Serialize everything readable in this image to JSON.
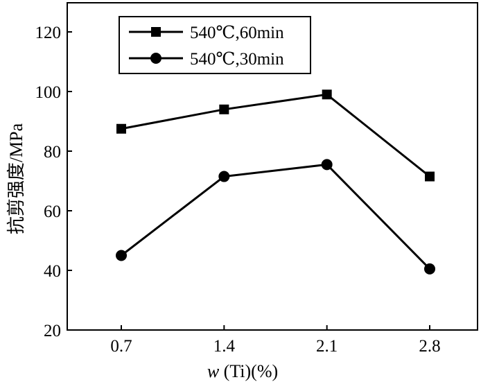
{
  "chart_data": {
    "type": "line",
    "title": "",
    "x": [
      0.7,
      1.4,
      2.1,
      2.8
    ],
    "x_tick_labels": [
      "0.7",
      "1.4",
      "2.1",
      "2.8"
    ],
    "xlabel_italic": "w",
    "xlabel_rest": " (Ti)(%)",
    "ylabel": "抗剪强度/MPa",
    "ylim": [
      20,
      130
    ],
    "y_ticks": [
      20,
      40,
      60,
      80,
      100,
      120
    ],
    "y_tick_labels": [
      "20",
      "40",
      "60",
      "80",
      "100",
      "120"
    ],
    "grid": false,
    "legend_position": "top-left",
    "series": [
      {
        "name": "540℃,60min",
        "marker": "square",
        "values": [
          87.5,
          94,
          99,
          71.5
        ]
      },
      {
        "name": "540℃,30min",
        "marker": "circle",
        "values": [
          45,
          71.5,
          75.5,
          40.5
        ]
      }
    ]
  },
  "colors": {
    "ink": "#000000",
    "background": "#ffffff"
  }
}
